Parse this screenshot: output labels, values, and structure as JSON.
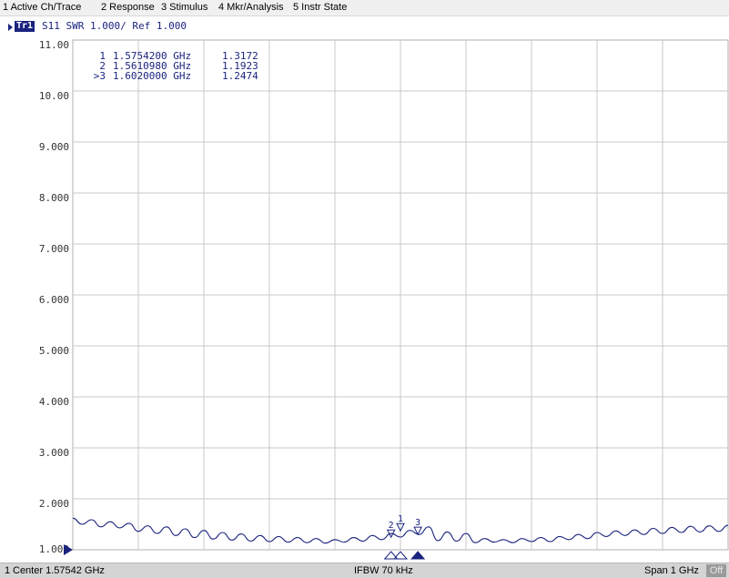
{
  "menu": {
    "items": [
      "1 Active Ch/Trace",
      "2 Response",
      "3 Stimulus",
      "4 Mkr/Analysis",
      "5 Instr State"
    ]
  },
  "trace": {
    "tag": "Tr1",
    "description": "S11  SWR 1.000/  Ref 1.000"
  },
  "y_axis": {
    "labels": [
      "11.00",
      "10.00",
      "9.000",
      "8.000",
      "7.000",
      "6.000",
      "5.000",
      "4.000",
      "3.000",
      "2.000",
      "1.000"
    ]
  },
  "markers": [
    {
      "id": "1",
      "freq": "1.5754200 GHz",
      "value": "1.3172"
    },
    {
      "id": "2",
      "freq": "1.5610980 GHz",
      "value": "1.1923"
    },
    {
      "id": ">3",
      "freq": "1.6020000 GHz",
      "value": "1.2474"
    }
  ],
  "status": {
    "channel": "1",
    "center": "Center 1.57542 GHz",
    "ifbw": "IFBW 70 kHz",
    "span": "Span 1 GHz",
    "off_badge": "Off"
  },
  "chart_data": {
    "type": "line",
    "series": [
      {
        "values": [
          1.62,
          1.5,
          1.59,
          1.45,
          1.55,
          1.43,
          1.52,
          1.36,
          1.47,
          1.32,
          1.45,
          1.28,
          1.41,
          1.24,
          1.38,
          1.21,
          1.34,
          1.19,
          1.31,
          1.17,
          1.28,
          1.16,
          1.26,
          1.15,
          1.24,
          1.14,
          1.22,
          1.13,
          1.2,
          1.15,
          1.24,
          1.17,
          1.28,
          1.2,
          1.32,
          1.25,
          1.38,
          1.3,
          1.45,
          1.18,
          1.35,
          1.17,
          1.32,
          1.14,
          1.22,
          1.15,
          1.2,
          1.14,
          1.22,
          1.16,
          1.24,
          1.16,
          1.26,
          1.2,
          1.3,
          1.22,
          1.34,
          1.26,
          1.37,
          1.28,
          1.39,
          1.3,
          1.42,
          1.32,
          1.44,
          1.34,
          1.46,
          1.35,
          1.47,
          1.36,
          1.48
        ]
      }
    ],
    "x_range_ghz": [
      1.07542,
      2.07542
    ],
    "ylim": [
      1.0,
      11.0
    ],
    "grid": true,
    "marker_positions_ghz": [
      1.57542,
      1.561098,
      1.602
    ]
  },
  "colors": {
    "trace": "#1a237e",
    "grid": "#c8c8c8",
    "header_bg": "#f0f0f0",
    "status_bg": "#d4d4d4"
  }
}
